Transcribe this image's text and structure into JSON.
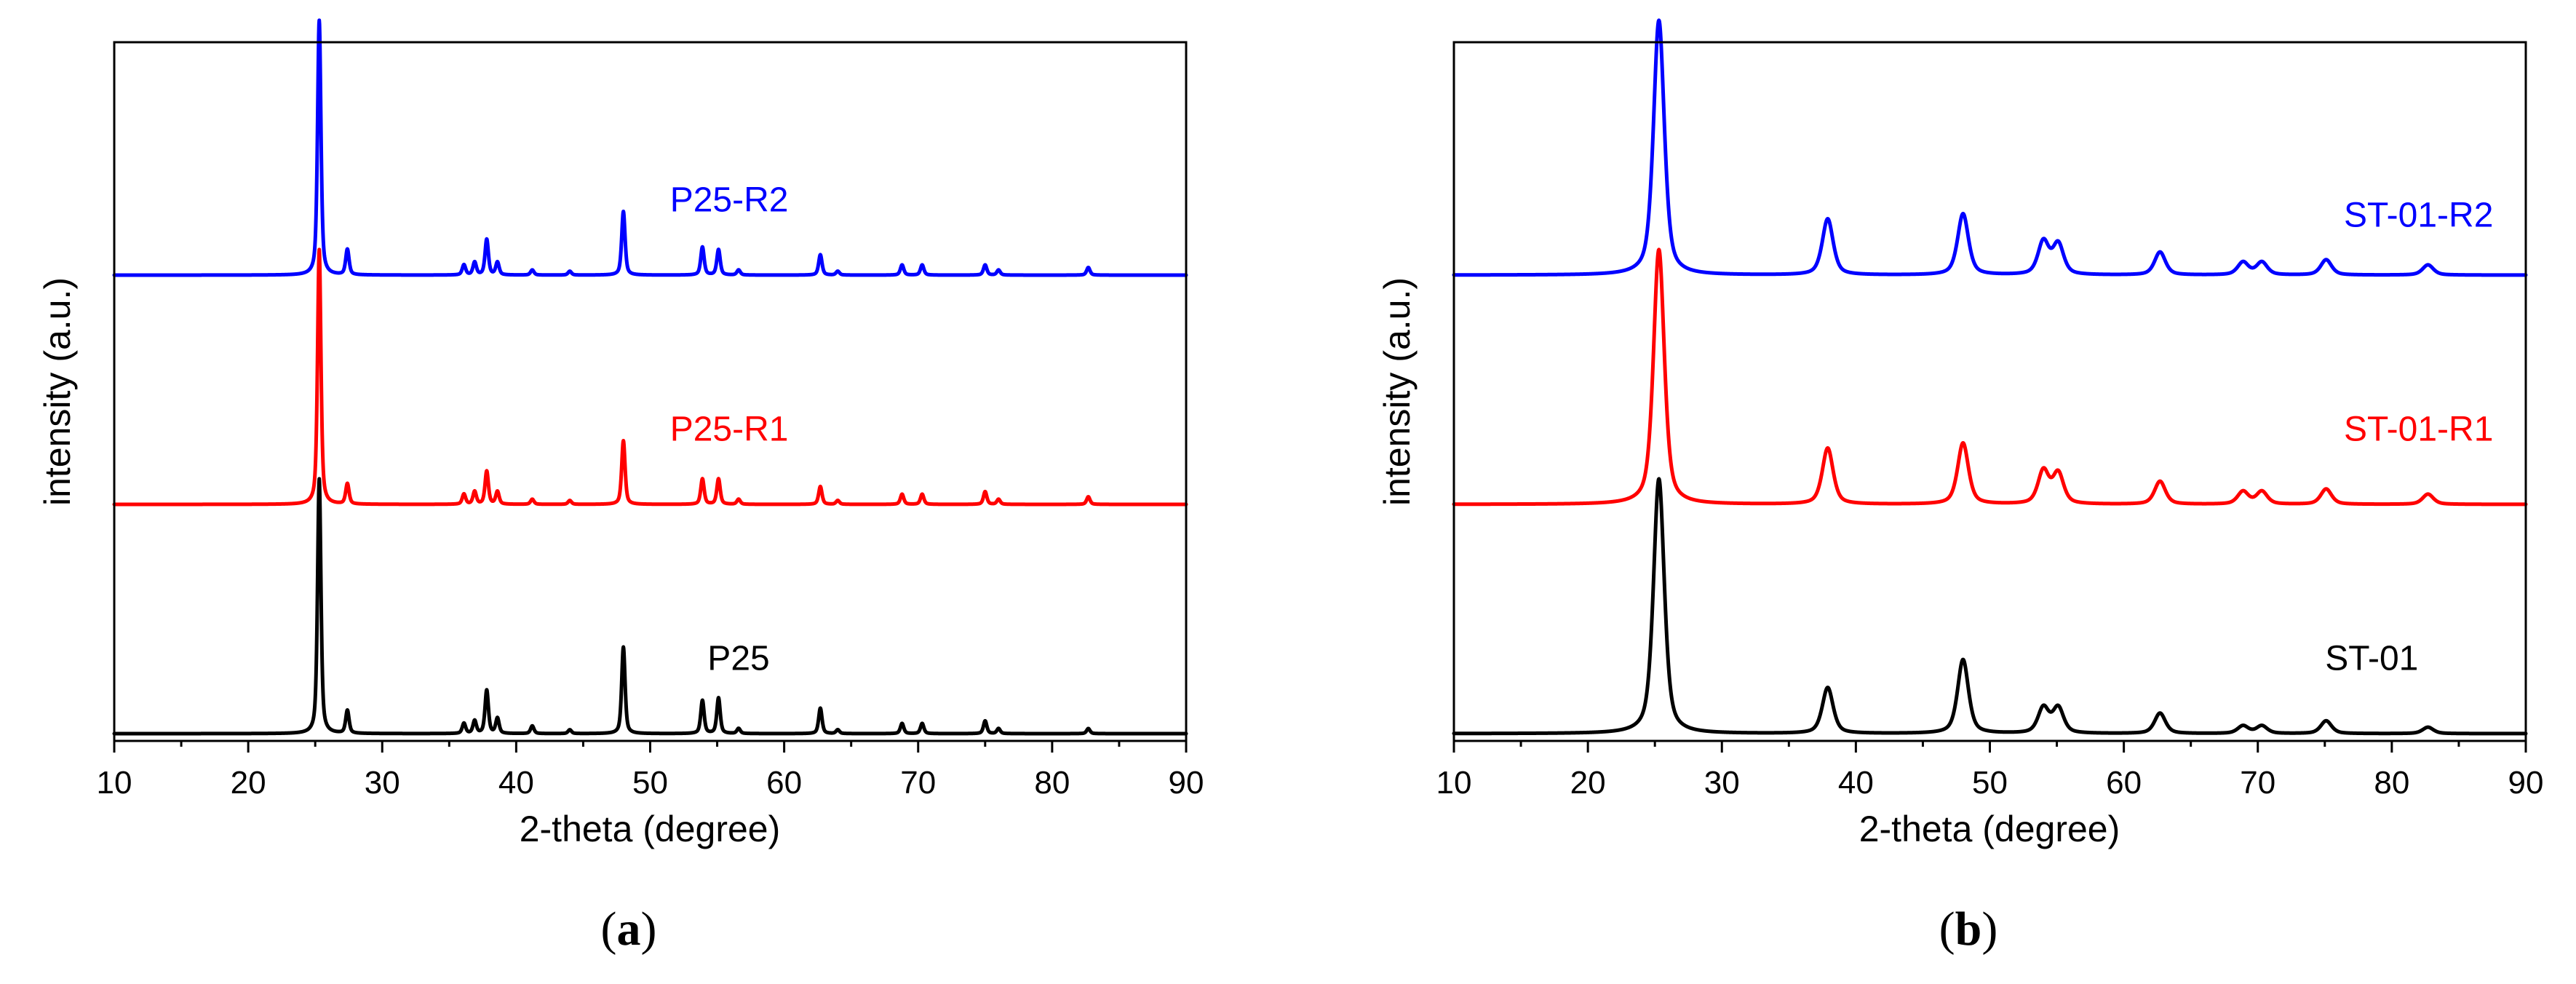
{
  "chart_data": [
    {
      "type": "line",
      "panel_label": "a",
      "title": "",
      "xlabel": "2-theta (degree)",
      "ylabel": "intensity (a.u.)",
      "xlim": [
        10,
        90
      ],
      "xticks": [
        10,
        20,
        30,
        40,
        50,
        60,
        70,
        80,
        90
      ],
      "yticks": [],
      "ylim": [
        0,
        2.6
      ],
      "grid": false,
      "legend": "labels placed next to each trace",
      "series": [
        {
          "name": "P25",
          "color": "#000000",
          "baseline": 0,
          "width_scale": 1.0,
          "peaks": [
            [
              25.3,
              1.0
            ],
            [
              27.4,
              0.09
            ],
            [
              36.1,
              0.04
            ],
            [
              36.9,
              0.05
            ],
            [
              37.8,
              0.17
            ],
            [
              38.6,
              0.06
            ],
            [
              41.2,
              0.03
            ],
            [
              44.0,
              0.015
            ],
            [
              48.0,
              0.34
            ],
            [
              53.9,
              0.13
            ],
            [
              55.1,
              0.14
            ],
            [
              56.6,
              0.02
            ],
            [
              62.7,
              0.1
            ],
            [
              64.0,
              0.015
            ],
            [
              68.8,
              0.04
            ],
            [
              70.3,
              0.04
            ],
            [
              75.0,
              0.05
            ],
            [
              76.0,
              0.02
            ],
            [
              82.7,
              0.02
            ]
          ]
        },
        {
          "name": "P25-R1",
          "color": "#ff0000",
          "baseline": 0.9,
          "width_scale": 1.0,
          "peaks": [
            [
              25.3,
              1.0
            ],
            [
              27.4,
              0.08
            ],
            [
              36.1,
              0.04
            ],
            [
              36.9,
              0.05
            ],
            [
              37.8,
              0.13
            ],
            [
              38.6,
              0.05
            ],
            [
              41.2,
              0.02
            ],
            [
              44.0,
              0.015
            ],
            [
              48.0,
              0.25
            ],
            [
              53.9,
              0.1
            ],
            [
              55.1,
              0.1
            ],
            [
              56.6,
              0.02
            ],
            [
              62.7,
              0.07
            ],
            [
              64.0,
              0.015
            ],
            [
              68.8,
              0.04
            ],
            [
              70.3,
              0.04
            ],
            [
              75.0,
              0.05
            ],
            [
              76.0,
              0.02
            ],
            [
              82.7,
              0.03
            ]
          ]
        },
        {
          "name": "P25-R2",
          "color": "#0000ff",
          "baseline": 1.8,
          "width_scale": 1.0,
          "peaks": [
            [
              25.3,
              1.0
            ],
            [
              27.4,
              0.1
            ],
            [
              36.1,
              0.04
            ],
            [
              36.9,
              0.05
            ],
            [
              37.8,
              0.14
            ],
            [
              38.6,
              0.05
            ],
            [
              41.2,
              0.02
            ],
            [
              44.0,
              0.015
            ],
            [
              48.0,
              0.25
            ],
            [
              53.9,
              0.11
            ],
            [
              55.1,
              0.1
            ],
            [
              56.6,
              0.02
            ],
            [
              62.7,
              0.08
            ],
            [
              64.0,
              0.015
            ],
            [
              68.8,
              0.04
            ],
            [
              70.3,
              0.04
            ],
            [
              75.0,
              0.04
            ],
            [
              76.0,
              0.02
            ],
            [
              82.7,
              0.03
            ]
          ]
        }
      ],
      "series_labels": [
        {
          "text": "P25",
          "color": "#000000",
          "x": 56.6,
          "y": 0.25
        },
        {
          "text": "P25-R1",
          "color": "#ff0000",
          "x": 55.9,
          "y": 1.15
        },
        {
          "text": "P25-R2",
          "color": "#0000ff",
          "x": 55.9,
          "y": 2.05
        }
      ]
    },
    {
      "type": "line",
      "panel_label": "b",
      "title": "",
      "xlabel": "2-theta (degree)",
      "ylabel": "intensity (a.u.)",
      "xlim": [
        10,
        90
      ],
      "xticks": [
        10,
        20,
        30,
        40,
        50,
        60,
        70,
        80,
        90
      ],
      "yticks": [],
      "ylim": [
        0,
        2.6
      ],
      "grid": false,
      "legend": "labels placed next to each trace",
      "series": [
        {
          "name": "ST-01",
          "color": "#000000",
          "baseline": 0,
          "width_scale": 3.2,
          "peaks": [
            [
              25.3,
              1.0
            ],
            [
              37.9,
              0.18
            ],
            [
              48.0,
              0.29
            ],
            [
              54.0,
              0.1
            ],
            [
              55.1,
              0.1
            ],
            [
              62.7,
              0.08
            ],
            [
              68.9,
              0.03
            ],
            [
              70.3,
              0.03
            ],
            [
              75.1,
              0.05
            ],
            [
              82.7,
              0.025
            ]
          ]
        },
        {
          "name": "ST-01-R1",
          "color": "#ff0000",
          "baseline": 0.9,
          "width_scale": 3.2,
          "peaks": [
            [
              25.3,
              1.0
            ],
            [
              37.9,
              0.22
            ],
            [
              48.0,
              0.24
            ],
            [
              54.0,
              0.13
            ],
            [
              55.1,
              0.12
            ],
            [
              62.7,
              0.09
            ],
            [
              68.9,
              0.05
            ],
            [
              70.3,
              0.05
            ],
            [
              75.1,
              0.06
            ],
            [
              82.7,
              0.04
            ]
          ]
        },
        {
          "name": "ST-01-R2",
          "color": "#0000ff",
          "baseline": 1.8,
          "width_scale": 3.2,
          "peaks": [
            [
              25.3,
              1.0
            ],
            [
              37.9,
              0.22
            ],
            [
              48.0,
              0.24
            ],
            [
              54.0,
              0.13
            ],
            [
              55.1,
              0.12
            ],
            [
              62.7,
              0.09
            ],
            [
              68.9,
              0.05
            ],
            [
              70.3,
              0.05
            ],
            [
              75.1,
              0.06
            ],
            [
              82.7,
              0.04
            ]
          ]
        }
      ],
      "series_labels": [
        {
          "text": "ST-01",
          "color": "#000000",
          "x": 78.5,
          "y": 0.25
        },
        {
          "text": "ST-01-R1",
          "color": "#ff0000",
          "x": 82.0,
          "y": 1.15
        },
        {
          "text": "ST-01-R2",
          "color": "#0000ff",
          "x": 82.0,
          "y": 1.99
        }
      ]
    }
  ]
}
